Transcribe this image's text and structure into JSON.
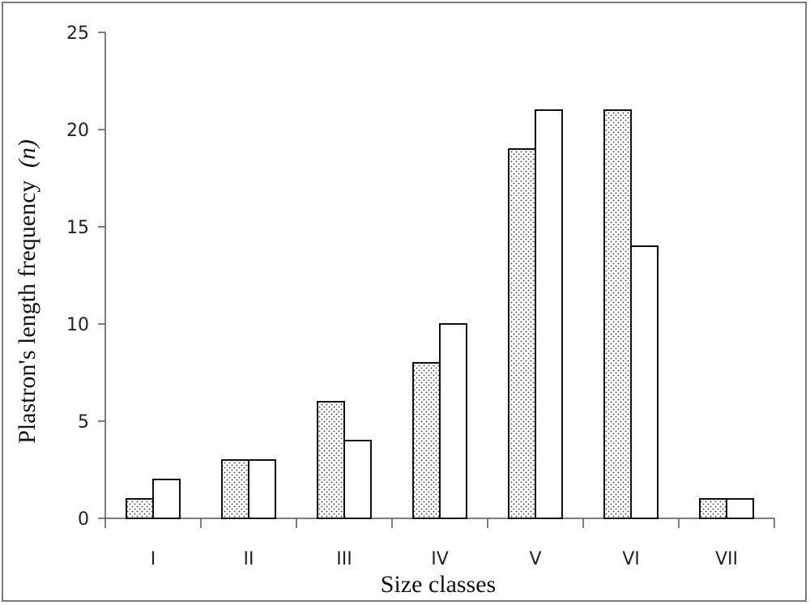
{
  "chart_data": {
    "type": "bar",
    "title": "",
    "xlabel": "Size classes",
    "ylabel_main": "Plastron's length frequency",
    "ylabel_unit": "(n)",
    "ylim": [
      0,
      25
    ],
    "yticks": [
      0,
      5,
      10,
      15,
      20,
      25
    ],
    "categories": [
      "I",
      "II",
      "III",
      "IV",
      "V",
      "VI",
      "VII"
    ],
    "series": [
      {
        "values": [
          1,
          3,
          6,
          8,
          19,
          21,
          1
        ],
        "fill": "dotted"
      },
      {
        "values": [
          2,
          3,
          4,
          10,
          21,
          14,
          1
        ],
        "fill": "white"
      }
    ],
    "grid": false,
    "legend": "none"
  }
}
